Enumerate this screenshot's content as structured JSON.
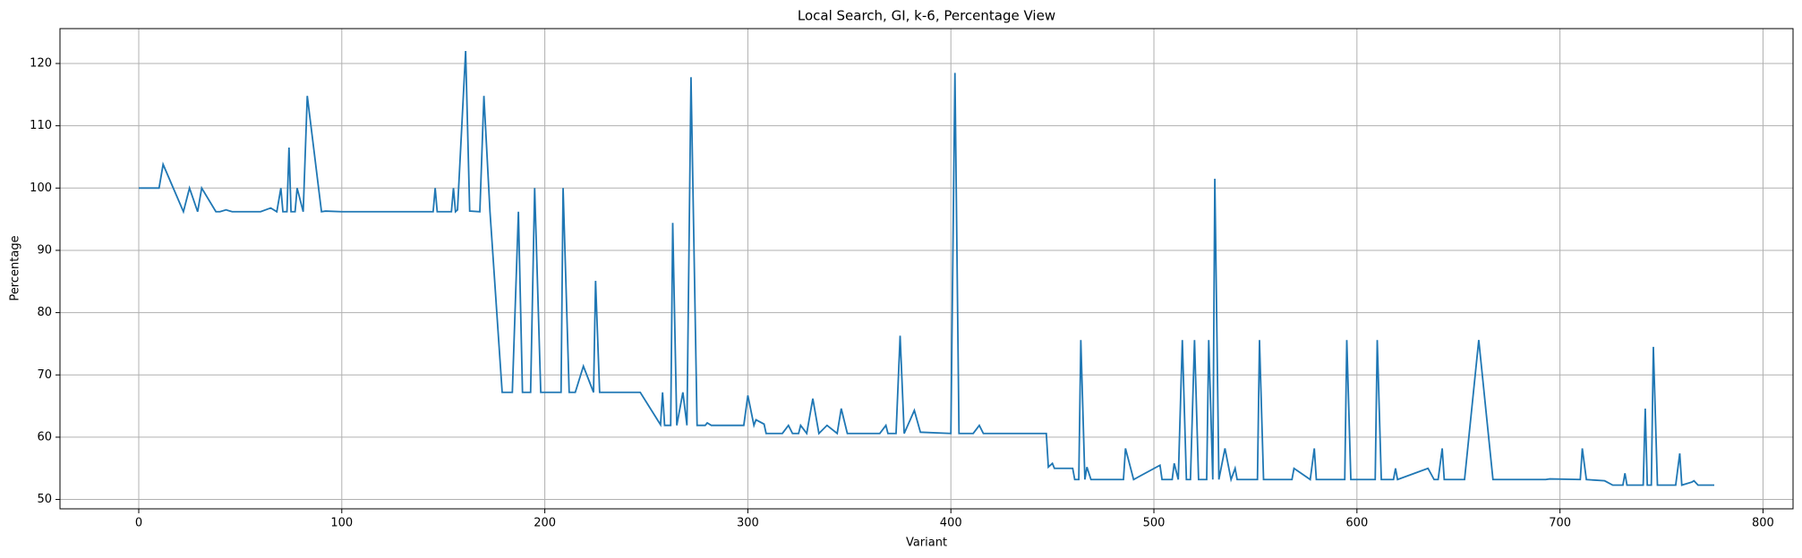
{
  "chart_data": {
    "type": "line",
    "title": "Local Search, GI, k-6, Percentage View",
    "x_label": "Variant",
    "y_label": "Percentage",
    "xlim": [
      -38.8,
      814.8
    ],
    "ylim": [
      48.5,
      125.6
    ],
    "xticks": [
      0,
      100,
      200,
      300,
      400,
      500,
      600,
      700,
      800
    ],
    "yticks": [
      50,
      60,
      70,
      80,
      90,
      100,
      110,
      120
    ],
    "grid": true,
    "series": [
      {
        "name": "Percentage",
        "color": "#1f77b4",
        "x": [
          0,
          10,
          12,
          22,
          25,
          29,
          31,
          38,
          40,
          43,
          46,
          60,
          65,
          68,
          70,
          71,
          73,
          74,
          75,
          77,
          78,
          81,
          83,
          90,
          92,
          100,
          145,
          146,
          147,
          154,
          155,
          156,
          157,
          161,
          163,
          168,
          170,
          173,
          179,
          184,
          187,
          189,
          193,
          195,
          198,
          208,
          209,
          212,
          215,
          219,
          224,
          225,
          227,
          247,
          257,
          258,
          259,
          262,
          263,
          265,
          268,
          270,
          272,
          275,
          279,
          280,
          282,
          298,
          300,
          303,
          304,
          308,
          309,
          317,
          320,
          322,
          325,
          326,
          329,
          332,
          335,
          339,
          344,
          346,
          349,
          365,
          368,
          369,
          373,
          375,
          377,
          382,
          385,
          400,
          402,
          404,
          411,
          414,
          416,
          447,
          448,
          450,
          451,
          460,
          461,
          463,
          464,
          466,
          467,
          469,
          485,
          486,
          490,
          503,
          504,
          509,
          510,
          512,
          514,
          516,
          518,
          520,
          522,
          526,
          527,
          529,
          530,
          532,
          535,
          538,
          540,
          541,
          551,
          552,
          554,
          568,
          569,
          577,
          579,
          580,
          594,
          595,
          597,
          609,
          610,
          612,
          618,
          619,
          620,
          635,
          638,
          640,
          642,
          643,
          653,
          660,
          667,
          693,
          695,
          710,
          711,
          713,
          722,
          726,
          731,
          732,
          733,
          741,
          742,
          743,
          745,
          746,
          748,
          757,
          759,
          760,
          765,
          766,
          768,
          776
        ],
        "values": [
          100,
          100,
          103.8,
          96.2,
          100,
          96.2,
          100,
          96.2,
          96.2,
          96.5,
          96.2,
          96.2,
          96.8,
          96.2,
          100,
          96.2,
          96.2,
          106.5,
          96.2,
          96.2,
          100,
          96.2,
          114.8,
          96.2,
          96.3,
          96.2,
          96.2,
          100,
          96.2,
          96.2,
          100,
          96.2,
          96.5,
          122,
          96.3,
          96.2,
          114.8,
          96.2,
          67.2,
          67.2,
          96.2,
          67.2,
          67.2,
          100,
          67.2,
          67.2,
          100,
          67.2,
          67.2,
          71.4,
          67.2,
          85.1,
          67.2,
          67.2,
          62,
          67.2,
          61.9,
          61.9,
          94.4,
          61.9,
          67.2,
          61.9,
          117.8,
          61.9,
          61.9,
          62.3,
          61.9,
          61.9,
          66.7,
          61.9,
          62.8,
          62.1,
          60.6,
          60.6,
          61.9,
          60.6,
          60.6,
          61.9,
          60.6,
          66.2,
          60.6,
          61.9,
          60.6,
          64.6,
          60.6,
          60.6,
          61.9,
          60.6,
          60.6,
          76.3,
          60.6,
          64.3,
          60.8,
          60.6,
          118.5,
          60.6,
          60.6,
          61.9,
          60.6,
          60.6,
          55.2,
          55.8,
          55,
          55,
          53.2,
          53.2,
          75.6,
          53.2,
          55.2,
          53.2,
          53.2,
          58.2,
          53.2,
          55.5,
          53.2,
          53.2,
          55.8,
          53.2,
          75.6,
          53.2,
          53.2,
          75.6,
          53.2,
          53.2,
          75.6,
          53.2,
          101.5,
          53.2,
          58.2,
          53.2,
          55,
          53.2,
          53.2,
          75.6,
          53.2,
          53.2,
          55,
          53.2,
          58.2,
          53.2,
          53.2,
          75.6,
          53.2,
          53.2,
          75.6,
          53.2,
          53.2,
          55,
          53.2,
          55,
          53.2,
          53.2,
          58.2,
          53.2,
          53.2,
          75.6,
          53.2,
          53.2,
          53.3,
          53.2,
          58.2,
          53.2,
          53,
          52.3,
          52.3,
          54.2,
          52.3,
          52.3,
          64.6,
          52.3,
          52.3,
          74.5,
          52.3,
          52.3,
          57.4,
          52.3,
          52.8,
          53,
          52.3,
          52.3
        ]
      }
    ]
  }
}
